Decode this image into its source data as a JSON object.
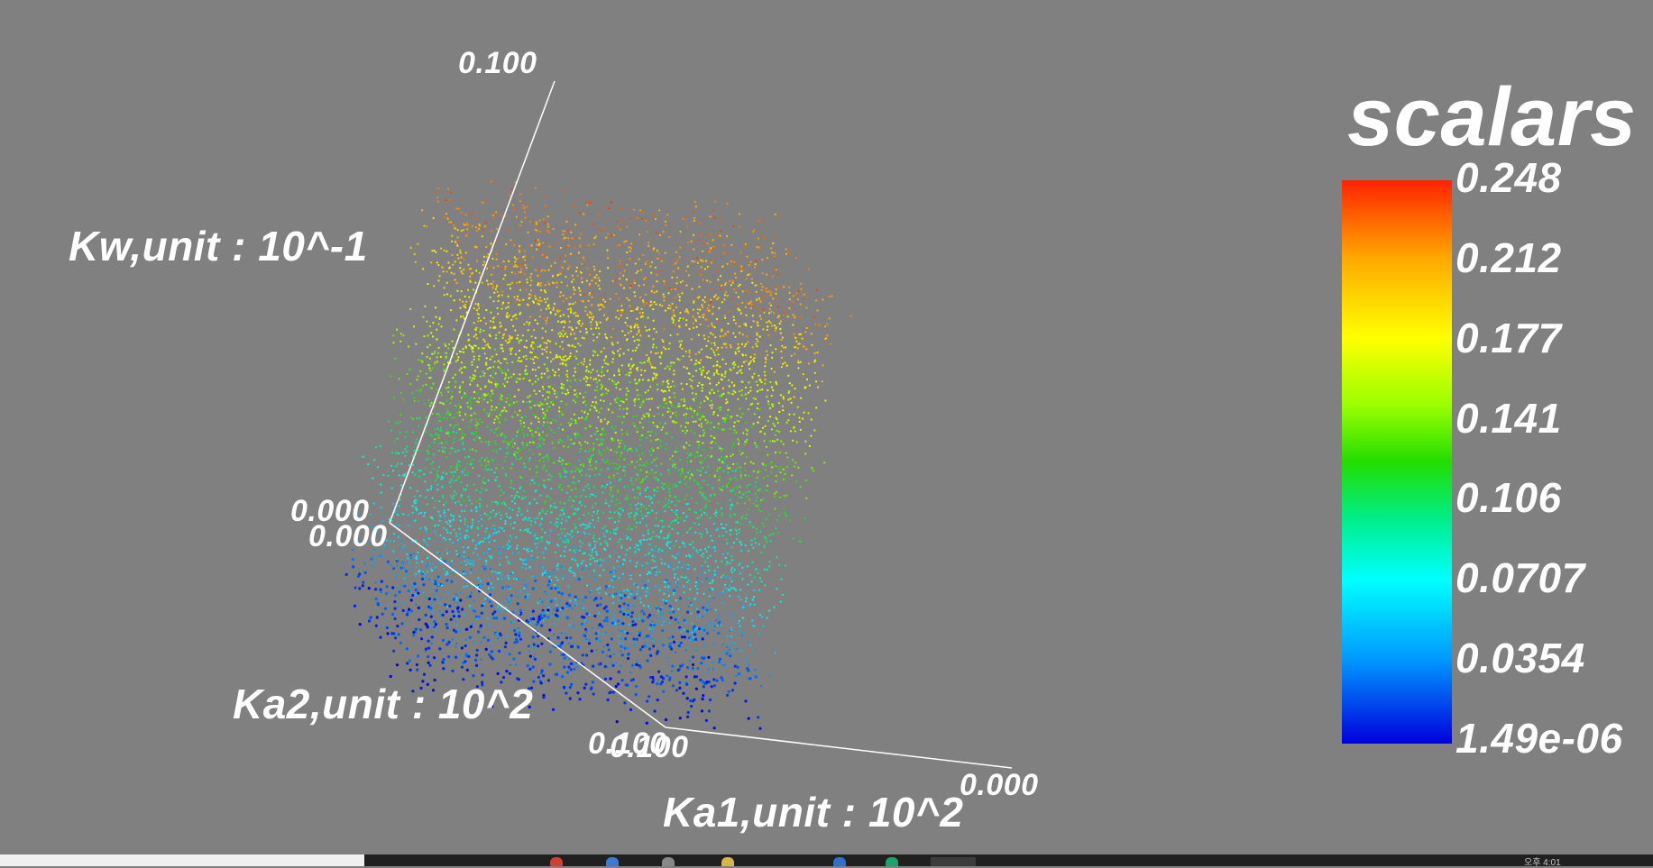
{
  "chart_data": {
    "type": "scatter",
    "projection": "3d",
    "axes": {
      "x": {
        "label": "Ka1,unit : 10^2",
        "range": [
          0.0,
          0.1
        ],
        "tick_labels": [
          "0.000",
          "0.100"
        ]
      },
      "y": {
        "label": "Ka2,unit : 10^2",
        "range": [
          0.0,
          0.1
        ],
        "tick_labels": [
          "0.000",
          "0.100"
        ]
      },
      "z": {
        "label": "Kw,unit : 10^-1",
        "range": [
          0.0,
          0.1
        ],
        "tick_labels": [
          "0.000",
          "0.100"
        ]
      }
    },
    "points": {
      "count": 6000,
      "distribution": "uniform in unit cube, colored by scalar"
    },
    "colorbar": {
      "title": "scalars",
      "range": [
        1.49e-06,
        0.248
      ],
      "tick_labels": [
        "0.248",
        "0.212",
        "0.177",
        "0.141",
        "0.106",
        "0.0707",
        "0.0354",
        "1.49e-06"
      ],
      "colormap": "rainbow (blue to red)"
    },
    "background_color": "#808080"
  },
  "taskbar": {
    "clock": "오후 4:01"
  }
}
